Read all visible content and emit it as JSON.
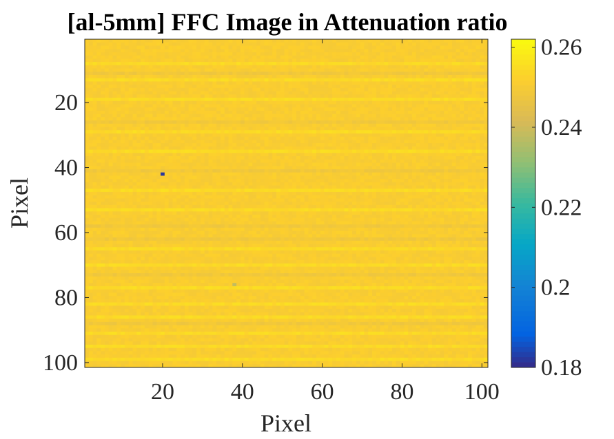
{
  "chart_data": {
    "type": "heatmap",
    "title": "[al-5mm] FFC Image in Attenuation ratio",
    "xlabel": "Pixel",
    "ylabel": "Pixel",
    "rows": 101,
    "cols": 101,
    "xlim": [
      1,
      101
    ],
    "ylim": [
      1,
      101
    ],
    "x_ticks": [
      20,
      40,
      60,
      80,
      100
    ],
    "y_ticks": [
      20,
      40,
      60,
      80,
      100
    ],
    "x_tick_labels": [
      "20",
      "40",
      "60",
      "80",
      "100"
    ],
    "y_tick_labels": [
      "20",
      "40",
      "60",
      "80",
      "100"
    ],
    "y_direction": "reversed",
    "colormap": "parula",
    "clim": [
      0.18,
      0.262
    ],
    "colorbar_ticks": [
      0.18,
      0.2,
      0.22,
      0.24,
      0.26
    ],
    "colorbar_tick_labels": [
      "0.18",
      "0.2",
      "0.22",
      "0.24",
      "0.26"
    ],
    "base_value": 0.251,
    "bright_rows": [
      8,
      13,
      19,
      29,
      35,
      47,
      53,
      65,
      70,
      77,
      82,
      86,
      91,
      95,
      99
    ],
    "dim_rows": [
      11,
      26,
      41,
      58,
      62,
      73,
      88
    ],
    "bright_row_value": 0.2545,
    "dim_row_value": 0.2485,
    "outliers": [
      {
        "col": 20,
        "row": 42,
        "value": 0.182
      },
      {
        "col": 38,
        "row": 76,
        "value": 0.238
      }
    ]
  }
}
